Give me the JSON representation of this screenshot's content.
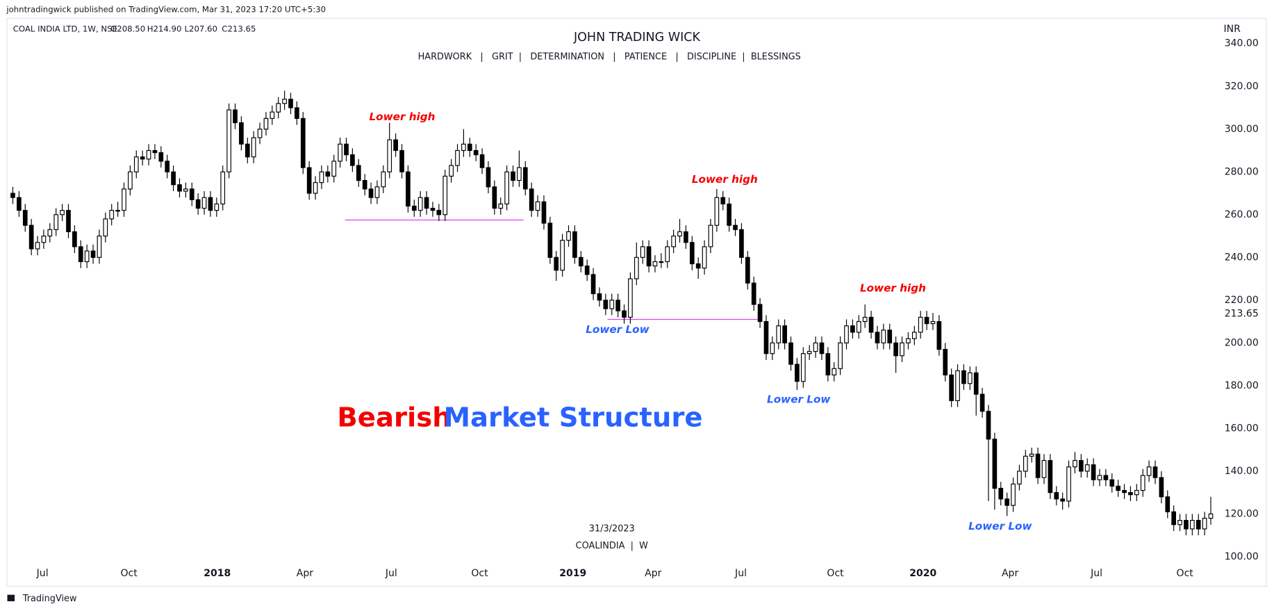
{
  "chart_data": {
    "type": "candlestick",
    "publisher": "johntradingwick published on TradingView.com, Mar 31, 2023 17:20 UTC+5:30",
    "symbol_info": "COAL INDIA LTD, 1W, NSE",
    "ohlc_text": [
      "O208.50",
      "H214.90",
      "L207.60",
      "C213.65"
    ],
    "title": "JOHN TRADING WICK",
    "subtitle": "HARDWORK   |   GRIT  |   DETERMINATION   |   PATIENCE   |   DISCIPLINE  |  BLESSINGS",
    "currency": "INR",
    "watermark_date": "31/3/2023",
    "watermark_symbol": "COALINDIA  |  W",
    "footer": "TradingView",
    "headline": [
      {
        "text": "Bearish",
        "color": "#f40000"
      },
      {
        "text": "Market Structure",
        "color": "#2962ff"
      }
    ],
    "annotations": [
      {
        "text": "Lower high",
        "color": "#f40000"
      },
      {
        "text": "Lower high",
        "color": "#f40000"
      },
      {
        "text": "Lower high",
        "color": "#f40000"
      },
      {
        "text": "Lower Low",
        "color": "#2962ff"
      },
      {
        "text": "Lower Low",
        "color": "#2962ff"
      },
      {
        "text": "Lower Low",
        "color": "#2962ff"
      }
    ],
    "levels": [
      {
        "value": 257.5,
        "x": [
          54.3,
          83.2
        ],
        "color": "#e040fb"
      },
      {
        "value": 211,
        "x": [
          96.8,
          121.7
        ],
        "color": "#e040fb"
      }
    ],
    "last_price": {
      "value": 213.65,
      "label": "213.65"
    },
    "up_color": "#ffffff",
    "down_color": "#000000",
    "xlim": [
      0,
      195
    ],
    "xticks": [
      {
        "value": 5.3,
        "label": "Jul"
      },
      {
        "value": 19.3,
        "label": "Oct"
      },
      {
        "value": 33.6,
        "label": "2018"
      },
      {
        "value": 47.8,
        "label": "Apr"
      },
      {
        "value": 61.8,
        "label": "Jul"
      },
      {
        "value": 76.1,
        "label": "Oct"
      },
      {
        "value": 91.2,
        "label": "2019"
      },
      {
        "value": 104.2,
        "label": "Apr"
      },
      {
        "value": 118.4,
        "label": "Jul"
      },
      {
        "value": 133.7,
        "label": "Oct"
      },
      {
        "value": 147.9,
        "label": "2020"
      },
      {
        "value": 162,
        "label": "Apr"
      },
      {
        "value": 176,
        "label": "Jul"
      },
      {
        "value": 190.3,
        "label": "Oct"
      }
    ],
    "ylim": [
      86,
      349
    ],
    "yticks": [
      {
        "value": 100,
        "label": "100.00"
      },
      {
        "value": 120,
        "label": "120.00"
      },
      {
        "value": 140,
        "label": "140.00"
      },
      {
        "value": 160,
        "label": "160.00"
      },
      {
        "value": 180,
        "label": "180.00"
      },
      {
        "value": 200,
        "label": "200.00"
      },
      {
        "value": 220,
        "label": "220.00"
      },
      {
        "value": 240,
        "label": "240.00"
      },
      {
        "value": 260,
        "label": "260.00"
      },
      {
        "value": 280,
        "label": "280.00"
      },
      {
        "value": 300,
        "label": "300.00"
      },
      {
        "value": 320,
        "label": "320.00"
      },
      {
        "value": 340,
        "label": "340.00"
      }
    ],
    "candles": [
      [
        270,
        273,
        265,
        268
      ],
      [
        268,
        271,
        259,
        262
      ],
      [
        262,
        265,
        252,
        255
      ],
      [
        255,
        258,
        241,
        244
      ],
      [
        244,
        250,
        241,
        247
      ],
      [
        247,
        253,
        244,
        250
      ],
      [
        250,
        256,
        247,
        253
      ],
      [
        253,
        263,
        250,
        260
      ],
      [
        260,
        265,
        257,
        262
      ],
      [
        262,
        265,
        249,
        252
      ],
      [
        252,
        255,
        242,
        245
      ],
      [
        245,
        248,
        235,
        238
      ],
      [
        238,
        246,
        235,
        243
      ],
      [
        243,
        246,
        237,
        240
      ],
      [
        240,
        253,
        237,
        250
      ],
      [
        250,
        261,
        247,
        258
      ],
      [
        258,
        265,
        255,
        262
      ],
      [
        262,
        266,
        259,
        262
      ],
      [
        262,
        275,
        259,
        272
      ],
      [
        272,
        283,
        269,
        280
      ],
      [
        280,
        290,
        277,
        287
      ],
      [
        287,
        290,
        283,
        286
      ],
      [
        286,
        293,
        283,
        290
      ],
      [
        290,
        293,
        286,
        289
      ],
      [
        289,
        292,
        282,
        285
      ],
      [
        285,
        288,
        277,
        280
      ],
      [
        280,
        283,
        271,
        274
      ],
      [
        274,
        277,
        268,
        271
      ],
      [
        271,
        275,
        268,
        272
      ],
      [
        272,
        275,
        264,
        267
      ],
      [
        267,
        270,
        260,
        263
      ],
      [
        263,
        271,
        260,
        268
      ],
      [
        268,
        271,
        259,
        262
      ],
      [
        262,
        268,
        259,
        265
      ],
      [
        265,
        283,
        262,
        280
      ],
      [
        280,
        312,
        277,
        309
      ],
      [
        309,
        312,
        300,
        303
      ],
      [
        303,
        306,
        290,
        293
      ],
      [
        293,
        296,
        284,
        287
      ],
      [
        287,
        299,
        284,
        296
      ],
      [
        296,
        303,
        293,
        300
      ],
      [
        300,
        308,
        297,
        305
      ],
      [
        305,
        311,
        302,
        308
      ],
      [
        308,
        315,
        305,
        312
      ],
      [
        312,
        318,
        309,
        314
      ],
      [
        314,
        317,
        307,
        310
      ],
      [
        310,
        313,
        302,
        305
      ],
      [
        305,
        308,
        279,
        282
      ],
      [
        282,
        285,
        267,
        270
      ],
      [
        270,
        278,
        267,
        275
      ],
      [
        275,
        283,
        272,
        280
      ],
      [
        280,
        283,
        275,
        278
      ],
      [
        278,
        288,
        275,
        285
      ],
      [
        285,
        296,
        282,
        293
      ],
      [
        293,
        296,
        285,
        288
      ],
      [
        288,
        291,
        280,
        283
      ],
      [
        283,
        286,
        273,
        276
      ],
      [
        276,
        279,
        269,
        272
      ],
      [
        272,
        275,
        265,
        268
      ],
      [
        268,
        276,
        265,
        273
      ],
      [
        273,
        283,
        270,
        280
      ],
      [
        280,
        303,
        277,
        295
      ],
      [
        295,
        298,
        287,
        290
      ],
      [
        290,
        293,
        277,
        280
      ],
      [
        280,
        283,
        261,
        264
      ],
      [
        264,
        267,
        259,
        262
      ],
      [
        262,
        271,
        259,
        268
      ],
      [
        268,
        271,
        260,
        263
      ],
      [
        263,
        266,
        259,
        262
      ],
      [
        262,
        265,
        257,
        260
      ],
      [
        260,
        281,
        257,
        278
      ],
      [
        278,
        286,
        275,
        283
      ],
      [
        283,
        293,
        280,
        290
      ],
      [
        290,
        300,
        287,
        293
      ],
      [
        293,
        296,
        287,
        290
      ],
      [
        290,
        293,
        285,
        288
      ],
      [
        288,
        291,
        279,
        282
      ],
      [
        282,
        285,
        270,
        273
      ],
      [
        273,
        276,
        260,
        263
      ],
      [
        263,
        268,
        260,
        265
      ],
      [
        265,
        283,
        262,
        280
      ],
      [
        280,
        283,
        273,
        276
      ],
      [
        276,
        290,
        273,
        282
      ],
      [
        282,
        285,
        269,
        272
      ],
      [
        272,
        275,
        259,
        262
      ],
      [
        262,
        269,
        259,
        266
      ],
      [
        266,
        269,
        253,
        256
      ],
      [
        256,
        259,
        237,
        240
      ],
      [
        240,
        243,
        229,
        234
      ],
      [
        234,
        251,
        231,
        248
      ],
      [
        248,
        255,
        245,
        252
      ],
      [
        252,
        255,
        237,
        240
      ],
      [
        240,
        243,
        233,
        236
      ],
      [
        236,
        239,
        229,
        232
      ],
      [
        232,
        235,
        220,
        223
      ],
      [
        223,
        226,
        217,
        220
      ],
      [
        220,
        223,
        213,
        216
      ],
      [
        216,
        223,
        213,
        220
      ],
      [
        220,
        223,
        212,
        215
      ],
      [
        215,
        218,
        209,
        212
      ],
      [
        212,
        233,
        209,
        230
      ],
      [
        230,
        247,
        227,
        240
      ],
      [
        240,
        248,
        237,
        245
      ],
      [
        245,
        248,
        233,
        236
      ],
      [
        236,
        241,
        233,
        238
      ],
      [
        238,
        242,
        235,
        238
      ],
      [
        238,
        248,
        235,
        245
      ],
      [
        245,
        253,
        242,
        250
      ],
      [
        250,
        258,
        247,
        252
      ],
      [
        252,
        255,
        244,
        247
      ],
      [
        247,
        250,
        234,
        237
      ],
      [
        237,
        240,
        230,
        235
      ],
      [
        235,
        248,
        232,
        245
      ],
      [
        245,
        258,
        242,
        255
      ],
      [
        255,
        272,
        252,
        268
      ],
      [
        268,
        271,
        262,
        265
      ],
      [
        265,
        268,
        252,
        255
      ],
      [
        255,
        258,
        250,
        253
      ],
      [
        253,
        256,
        237,
        240
      ],
      [
        240,
        243,
        225,
        228
      ],
      [
        228,
        231,
        215,
        218
      ],
      [
        218,
        221,
        207,
        210
      ],
      [
        210,
        213,
        192,
        195
      ],
      [
        195,
        203,
        192,
        200
      ],
      [
        200,
        211,
        197,
        208
      ],
      [
        208,
        211,
        197,
        200
      ],
      [
        200,
        203,
        187,
        190
      ],
      [
        190,
        193,
        178,
        182
      ],
      [
        182,
        198,
        179,
        195
      ],
      [
        195,
        199,
        192,
        196
      ],
      [
        196,
        203,
        193,
        200
      ],
      [
        200,
        203,
        192,
        195
      ],
      [
        195,
        198,
        182,
        185
      ],
      [
        185,
        191,
        182,
        188
      ],
      [
        188,
        203,
        185,
        200
      ],
      [
        200,
        211,
        197,
        208
      ],
      [
        208,
        211,
        202,
        205
      ],
      [
        205,
        213,
        202,
        210
      ],
      [
        210,
        218,
        207,
        212
      ],
      [
        212,
        215,
        202,
        205
      ],
      [
        205,
        208,
        197,
        200
      ],
      [
        200,
        209,
        197,
        206
      ],
      [
        206,
        209,
        197,
        200
      ],
      [
        200,
        203,
        186,
        194
      ],
      [
        194,
        203,
        191,
        200
      ],
      [
        200,
        205,
        197,
        202
      ],
      [
        202,
        208,
        199,
        205
      ],
      [
        205,
        215,
        202,
        212
      ],
      [
        212,
        215,
        206,
        209
      ],
      [
        209,
        214,
        206,
        210
      ],
      [
        210,
        213,
        194,
        197
      ],
      [
        197,
        200,
        182,
        185
      ],
      [
        185,
        188,
        170,
        173
      ],
      [
        173,
        190,
        170,
        187
      ],
      [
        187,
        190,
        178,
        181
      ],
      [
        181,
        189,
        178,
        186
      ],
      [
        186,
        189,
        166,
        176
      ],
      [
        176,
        179,
        165,
        168
      ],
      [
        168,
        171,
        126,
        155
      ],
      [
        155,
        158,
        122,
        132
      ],
      [
        132,
        135,
        124,
        127
      ],
      [
        127,
        130,
        119,
        124
      ],
      [
        124,
        137,
        121,
        134
      ],
      [
        134,
        143,
        131,
        140
      ],
      [
        140,
        150,
        137,
        147
      ],
      [
        147,
        151,
        144,
        148
      ],
      [
        148,
        151,
        134,
        137
      ],
      [
        137,
        148,
        134,
        145
      ],
      [
        145,
        148,
        127,
        130
      ],
      [
        130,
        133,
        124,
        127
      ],
      [
        127,
        130,
        122,
        126
      ],
      [
        126,
        145,
        123,
        142
      ],
      [
        142,
        149,
        139,
        145
      ],
      [
        145,
        148,
        137,
        140
      ],
      [
        140,
        146,
        137,
        143
      ],
      [
        143,
        146,
        133,
        136
      ],
      [
        136,
        141,
        133,
        138
      ],
      [
        138,
        141,
        133,
        136
      ],
      [
        136,
        139,
        130,
        133
      ],
      [
        133,
        136,
        128,
        131
      ],
      [
        131,
        134,
        127,
        130
      ],
      [
        130,
        133,
        126,
        129
      ],
      [
        129,
        134,
        126,
        131
      ],
      [
        131,
        141,
        128,
        138
      ],
      [
        138,
        145,
        135,
        142
      ],
      [
        142,
        145,
        134,
        137
      ],
      [
        137,
        140,
        125,
        128
      ],
      [
        128,
        131,
        118,
        121
      ],
      [
        121,
        124,
        112,
        115
      ],
      [
        115,
        120,
        112,
        117
      ],
      [
        117,
        120,
        110,
        113
      ],
      [
        113,
        120,
        110,
        117
      ],
      [
        117,
        120,
        110,
        113
      ],
      [
        113,
        121,
        110,
        118
      ],
      [
        118,
        128,
        115,
        120
      ]
    ]
  }
}
